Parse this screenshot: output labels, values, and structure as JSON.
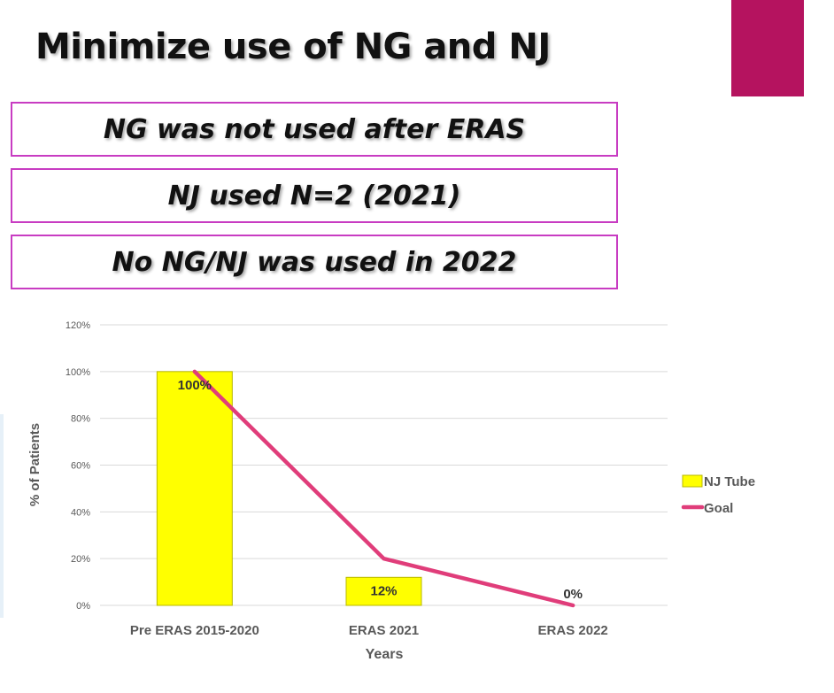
{
  "slide": {
    "title": "Minimize use of NG and NJ",
    "bullets": [
      "NG was not used after ERAS",
      "NJ used N=2 (2021)",
      "No NG/NJ was used in 2022"
    ]
  },
  "colors": {
    "accent": "#b5135f",
    "box_border": "#c83cc2",
    "bar_fill": "#ffff00",
    "goal_line": "#e03d7a",
    "gridline": "#d9d9d9"
  },
  "chart_data": {
    "type": "bar",
    "xlabel": "Years",
    "ylabel": "% of Patients",
    "categories": [
      "Pre ERAS 2015-2020",
      "ERAS 2021",
      "ERAS 2022"
    ],
    "ylim": [
      0,
      120
    ],
    "yticks": [
      0,
      20,
      40,
      60,
      80,
      100,
      120
    ],
    "ytick_labels": [
      "0%",
      "20%",
      "40%",
      "60%",
      "80%",
      "100%",
      "120%"
    ],
    "grid": true,
    "legend_position": "right",
    "series": [
      {
        "name": "NJ Tube",
        "kind": "bar",
        "values": [
          100,
          12,
          0
        ],
        "labels": [
          "100%",
          "12%",
          "0%"
        ]
      },
      {
        "name": "Goal",
        "kind": "line",
        "values": [
          100,
          20,
          0
        ]
      }
    ]
  }
}
